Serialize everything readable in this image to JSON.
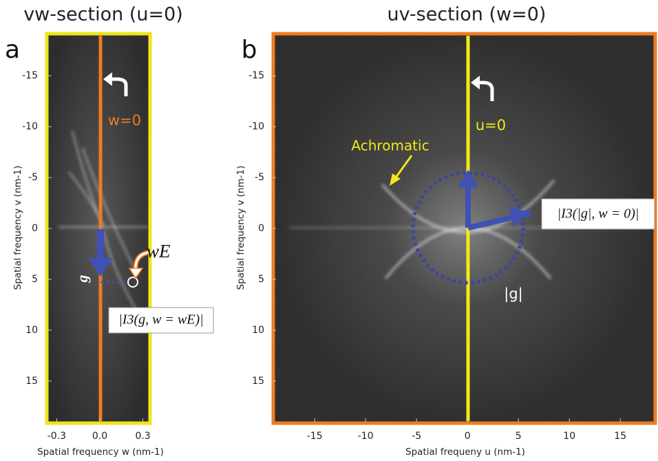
{
  "figure": {
    "panels": [
      {
        "letter": "a",
        "title": "vw-section (u=0)",
        "xlabel": "Spatial frequency w (nm-1)",
        "ylabel": "Spatial frequency v (nm-1)",
        "xlim": [
          -0.35,
          0.35
        ],
        "ylim": [
          -19,
          19
        ],
        "xticks": [
          -0.3,
          {
            "value": 0,
            "label": "0.0"
          },
          0.3
        ],
        "yticks": [
          -15,
          -10,
          -5,
          0,
          5,
          10,
          15
        ],
        "annotations": {
          "axis_line": "w=0",
          "energy": "wE",
          "vector": "g",
          "formula": "|I3(g, w = wE)|"
        }
      },
      {
        "letter": "b",
        "title": "uv-section (w=0)",
        "xlabel": "Spatial frequeny u (nm-1)",
        "ylabel": "Spatial frequency v (nm-1)",
        "xlim": [
          -19,
          18.5
        ],
        "ylim": [
          -19,
          19
        ],
        "xticks": [
          -15,
          -10,
          -5,
          0,
          5,
          10,
          15
        ],
        "yticks": [
          -15,
          -10,
          -5,
          0,
          5,
          10,
          15
        ],
        "annotations": {
          "axis_line": "u=0",
          "achromatic": "Achromatic",
          "magnitude": "|g|",
          "formula": "|I3(|g|, w = 0)|"
        }
      }
    ]
  }
}
